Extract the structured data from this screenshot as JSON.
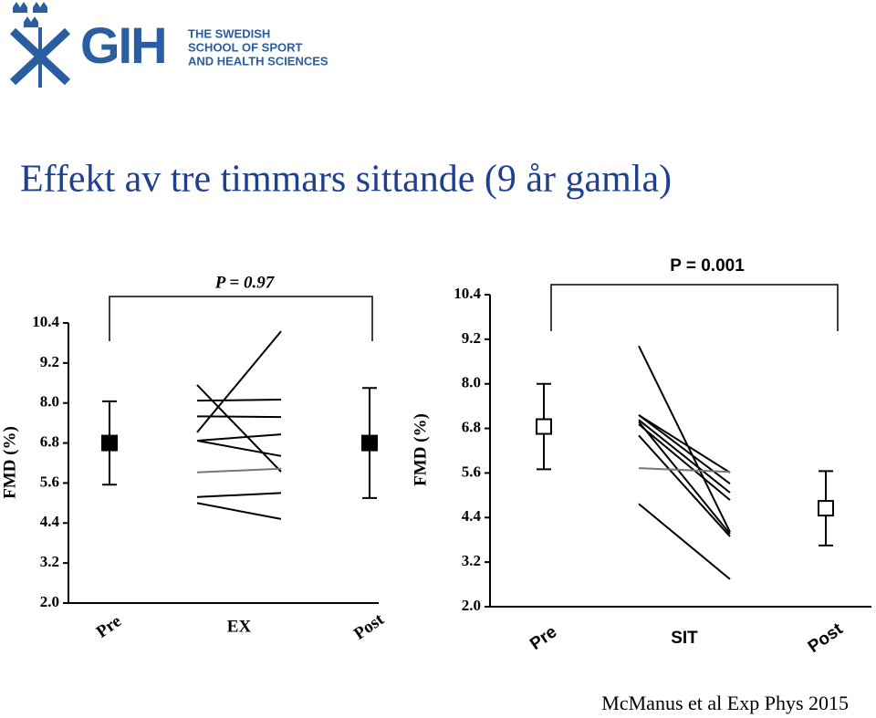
{
  "header": {
    "logo": "GIH",
    "lines": [
      "THE SWEDISH",
      "SCHOOL OF SPORT",
      "AND HEALTH SCIENCES"
    ]
  },
  "title": "Effekt av tre timmars sittande (9 år gamla)",
  "footer": "McManus et al Exp Phys 2015",
  "chart_data": [
    {
      "type": "paired",
      "ylabel": "FMD (%)",
      "annotation": "P = 0.97",
      "categories": [
        "Pre",
        "EX",
        "Post"
      ],
      "ylim": [
        2.0,
        10.4
      ],
      "yticks": [
        {
          "value": 2,
          "label": "2.0"
        },
        3.2,
        4.4,
        5.6,
        6.8,
        {
          "value": 8,
          "label": "8.0"
        },
        9.2,
        10.4
      ],
      "means": [
        6.8,
        null,
        6.8
      ],
      "errors": [
        1.25,
        null,
        1.65
      ],
      "marker_filled": true,
      "individual": [
        {
          "values": [
            7.12,
            10.15
          ],
          "color": "#000000"
        },
        {
          "values": [
            8.54,
            5.94
          ],
          "color": "#000000"
        },
        {
          "values": [
            8.07,
            8.1
          ],
          "color": "#000000"
        },
        {
          "values": [
            7.6,
            7.58
          ],
          "color": "#000000"
        },
        {
          "values": [
            6.87,
            7.06
          ],
          "color": "#000000"
        },
        {
          "values": [
            6.87,
            6.41
          ],
          "color": "#000000"
        },
        {
          "values": [
            5.92,
            6.03
          ],
          "color": "#777777"
        },
        {
          "values": [
            5.18,
            5.3
          ],
          "color": "#000000"
        },
        {
          "values": [
            5.0,
            4.52
          ],
          "color": "#000000"
        }
      ]
    },
    {
      "type": "paired",
      "ylabel": "FMD (%)",
      "annotation": "P = 0.001",
      "categories": [
        "Pre",
        "SIT",
        "Post"
      ],
      "ylim": [
        2.0,
        10.4
      ],
      "yticks": [
        {
          "value": 2,
          "label": "2.0"
        },
        3.2,
        4.4,
        5.6,
        6.8,
        {
          "value": 8,
          "label": "8.0"
        },
        9.2,
        10.4
      ],
      "means": [
        6.85,
        null,
        4.65
      ],
      "errors": [
        1.15,
        null,
        1.0
      ],
      "marker_filled": false,
      "individual": [
        {
          "values": [
            9.02,
            4.01
          ],
          "color": "#000000"
        },
        {
          "values": [
            7.16,
            5.61
          ],
          "color": "#000000"
        },
        {
          "values": [
            7.16,
            5.31
          ],
          "color": "#000000"
        },
        {
          "values": [
            7.03,
            5.07
          ],
          "color": "#000000"
        },
        {
          "values": [
            6.98,
            3.96
          ],
          "color": "#000000"
        },
        {
          "values": [
            6.91,
            4.87
          ],
          "color": "#000000"
        },
        {
          "values": [
            6.61,
            3.89
          ],
          "color": "#000000"
        },
        {
          "values": [
            5.73,
            5.63
          ],
          "color": "#777777"
        },
        {
          "values": [
            4.77,
            2.74
          ],
          "color": "#000000"
        }
      ]
    }
  ]
}
